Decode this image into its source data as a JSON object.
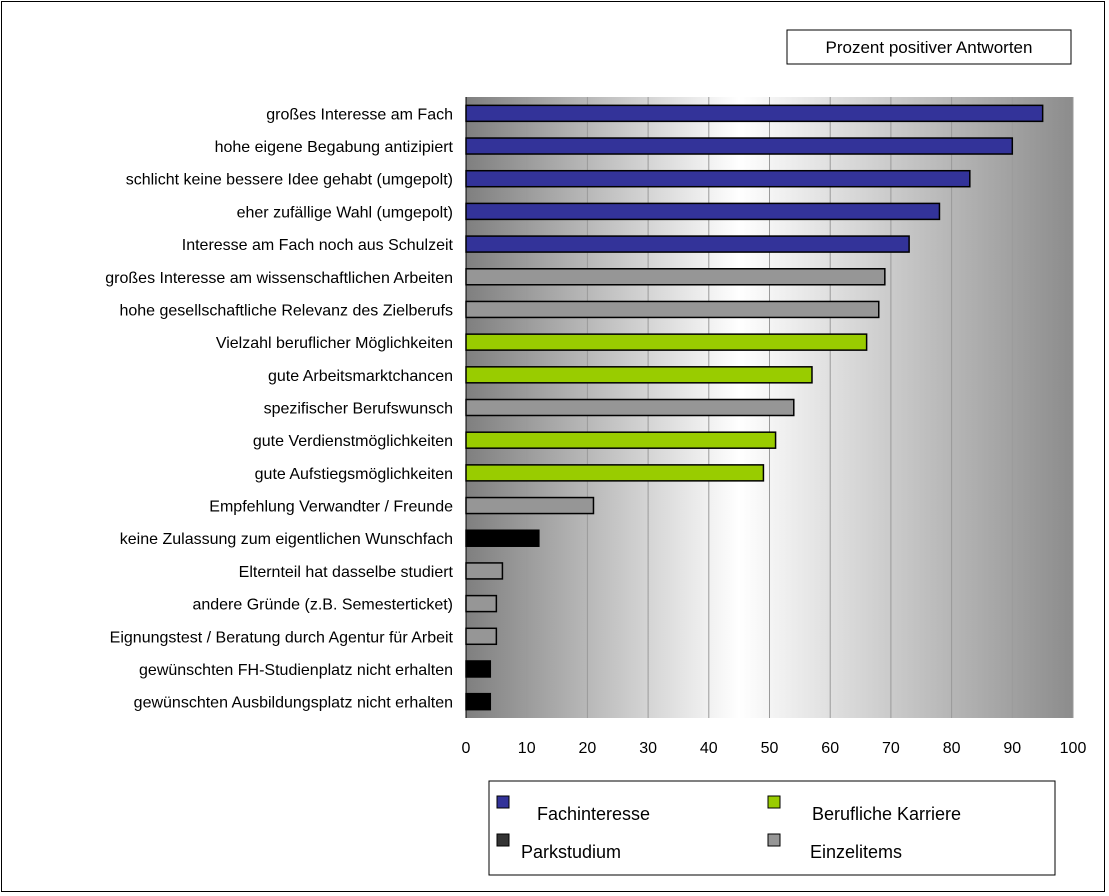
{
  "chart_data": {
    "type": "bar",
    "orientation": "horizontal",
    "title": "Prozent positiver Antworten",
    "xlim": [
      0,
      100
    ],
    "xticks": [
      0,
      10,
      20,
      30,
      40,
      50,
      60,
      70,
      80,
      90,
      100
    ],
    "grid": true,
    "legend_position": "bottom",
    "series_colors": {
      "Fachinteresse": "#333399",
      "Berufliche  Karriere": "#99cc00",
      "Parkstudium": "#000000",
      "Einzelitems": "#969696"
    },
    "legend": [
      {
        "name": "Fachinteresse",
        "color": "#333399"
      },
      {
        "name": "Berufliche  Karriere",
        "color": "#99cc00"
      },
      {
        "name": "Parkstudium",
        "color": "#333333"
      },
      {
        "name": "Einzelitems",
        "color": "#969696"
      }
    ],
    "bars": [
      {
        "label": "großes Interesse am Fach",
        "value": 95,
        "group": "Fachinteresse"
      },
      {
        "label": "hohe eigene Begabung antizipiert",
        "value": 90,
        "group": "Fachinteresse"
      },
      {
        "label": "schlicht keine bessere Idee gehabt (umgepolt)",
        "value": 83,
        "group": "Fachinteresse"
      },
      {
        "label": "eher zufällige Wahl (umgepolt)",
        "value": 78,
        "group": "Fachinteresse"
      },
      {
        "label": "Interesse am Fach noch aus Schulzeit",
        "value": 73,
        "group": "Fachinteresse"
      },
      {
        "label": "großes Interesse am wissenschaftlichen Arbeiten",
        "value": 69,
        "group": "Einzelitems"
      },
      {
        "label": "hohe gesellschaftliche Relevanz des Zielberufs",
        "value": 68,
        "group": "Einzelitems"
      },
      {
        "label": "Vielzahl beruflicher Möglichkeiten",
        "value": 66,
        "group": "Berufliche  Karriere"
      },
      {
        "label": "gute Arbeitsmarktchancen",
        "value": 57,
        "group": "Berufliche  Karriere"
      },
      {
        "label": "spezifischer Berufswunsch",
        "value": 54,
        "group": "Einzelitems"
      },
      {
        "label": "gute Verdienstmöglichkeiten",
        "value": 51,
        "group": "Berufliche  Karriere"
      },
      {
        "label": "gute Aufstiegsmöglichkeiten",
        "value": 49,
        "group": "Berufliche  Karriere"
      },
      {
        "label": "Empfehlung Verwandter / Freunde",
        "value": 21,
        "group": "Einzelitems"
      },
      {
        "label": "keine Zulassung zum eigentlichen Wunschfach",
        "value": 12,
        "group": "Parkstudium"
      },
      {
        "label": "Elternteil hat dasselbe studiert",
        "value": 6,
        "group": "Einzelitems"
      },
      {
        "label": "andere Gründe (z.B. Semesterticket)",
        "value": 5,
        "group": "Einzelitems"
      },
      {
        "label": "Eignungstest / Beratung durch Agentur für Arbeit",
        "value": 5,
        "group": "Einzelitems"
      },
      {
        "label": "gewünschten FH-Studienplatz nicht erhalten",
        "value": 4,
        "group": "Parkstudium"
      },
      {
        "label": "gewünschten Ausbildungsplatz nicht erhalten",
        "value": 4,
        "group": "Parkstudium"
      }
    ]
  }
}
